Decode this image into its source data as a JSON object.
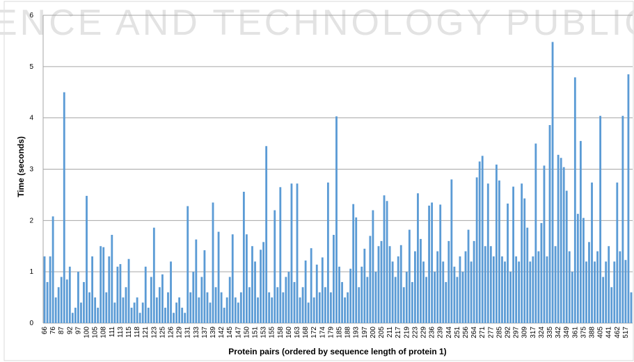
{
  "watermark": "ENCE AND TECHNOLOGY PUBLICATI",
  "chart_data": {
    "type": "bar",
    "y_label": "Time (seconds)",
    "x_label": "Protein pairs (ordered by sequence length of protein 1)",
    "color": "#5b9bd5",
    "grid": true,
    "ylim": [
      0,
      6
    ],
    "yticks": [
      0,
      1,
      2,
      3,
      4,
      5,
      6
    ],
    "categories": [
      "66",
      null,
      null,
      "76",
      null,
      null,
      "87",
      null,
      null,
      "92",
      null,
      null,
      "97",
      null,
      null,
      "100",
      null,
      null,
      "105",
      null,
      null,
      "108",
      null,
      null,
      "111",
      null,
      null,
      "113",
      null,
      null,
      "115",
      null,
      null,
      "118",
      null,
      null,
      "121",
      null,
      null,
      "123",
      null,
      null,
      "125",
      null,
      null,
      "126",
      null,
      null,
      "129",
      null,
      null,
      "131",
      null,
      null,
      "133",
      null,
      null,
      "137",
      null,
      null,
      "139",
      null,
      null,
      "142",
      null,
      null,
      "145",
      null,
      null,
      "147",
      null,
      null,
      "150",
      null,
      null,
      "151",
      null,
      null,
      "153",
      null,
      null,
      "155",
      null,
      null,
      "158",
      null,
      null,
      "160",
      null,
      null,
      "163",
      null,
      null,
      "168",
      null,
      null,
      "172",
      null,
      null,
      "174",
      null,
      null,
      "179",
      null,
      null,
      "185",
      null,
      null,
      "188",
      null,
      null,
      "193",
      null,
      null,
      "197",
      null,
      null,
      "200",
      null,
      null,
      "205",
      null,
      null,
      "211",
      null,
      null,
      "217",
      null,
      null,
      "219",
      null,
      null,
      "223",
      null,
      null,
      "229",
      null,
      null,
      "236",
      null,
      null,
      "239",
      null,
      null,
      "244",
      null,
      null,
      "251",
      null,
      null,
      "256",
      null,
      null,
      "264",
      null,
      null,
      "271",
      null,
      null,
      "277",
      null,
      null,
      "285",
      null,
      null,
      "292",
      null,
      null,
      "297",
      null,
      null,
      "309",
      null,
      null,
      "317",
      null,
      null,
      "324",
      null,
      null,
      "335",
      null,
      null,
      "342",
      null,
      null,
      "349",
      null,
      null,
      "361",
      null,
      null,
      "375",
      null,
      null,
      "388",
      null,
      null,
      "405",
      null,
      null,
      "441",
      null,
      null,
      "462",
      null,
      null,
      "517",
      null,
      null
    ],
    "values": [
      1.3,
      0.8,
      1.3,
      2.08,
      0.5,
      0.7,
      0.9,
      4.5,
      0.85,
      1.1,
      0.2,
      0.3,
      1.0,
      0.4,
      0.8,
      2.48,
      0.6,
      1.3,
      0.5,
      0.3,
      1.5,
      1.48,
      0.6,
      1.3,
      1.72,
      0.4,
      1.1,
      1.15,
      0.5,
      0.7,
      1.25,
      0.3,
      0.4,
      0.5,
      0.2,
      0.4,
      1.1,
      0.3,
      0.9,
      1.86,
      0.5,
      0.7,
      0.95,
      0.3,
      0.6,
      1.2,
      0.2,
      0.4,
      0.5,
      0.3,
      0.2,
      2.28,
      0.6,
      1.0,
      1.63,
      0.5,
      0.9,
      1.42,
      0.6,
      0.4,
      2.35,
      0.7,
      1.78,
      0.6,
      0.3,
      0.5,
      0.9,
      1.73,
      0.5,
      0.4,
      0.6,
      2.56,
      1.73,
      0.7,
      1.5,
      1.2,
      0.5,
      1.43,
      1.58,
      3.45,
      0.6,
      0.5,
      2.2,
      0.7,
      2.65,
      0.6,
      0.9,
      1.0,
      2.72,
      0.8,
      2.72,
      0.5,
      0.7,
      1.22,
      0.4,
      1.46,
      0.5,
      1.14,
      0.6,
      1.28,
      0.7,
      2.74,
      0.6,
      1.72,
      4.03,
      1.1,
      0.8,
      0.5,
      0.6,
      1.06,
      2.32,
      2.06,
      0.7,
      1.1,
      1.45,
      0.9,
      1.7,
      2.2,
      1.0,
      1.5,
      1.6,
      2.49,
      2.38,
      1.5,
      1.2,
      0.9,
      1.3,
      1.52,
      0.7,
      1.0,
      1.82,
      0.8,
      1.4,
      2.53,
      1.64,
      1.2,
      0.9,
      2.29,
      2.35,
      1.0,
      1.4,
      2.31,
      1.2,
      0.8,
      1.6,
      2.8,
      1.1,
      0.9,
      1.3,
      1.0,
      1.4,
      1.82,
      1.2,
      1.6,
      2.84,
      3.15,
      3.26,
      1.5,
      2.72,
      1.5,
      1.3,
      3.09,
      2.78,
      1.3,
      1.2,
      2.33,
      1.0,
      2.66,
      1.3,
      1.2,
      2.72,
      2.43,
      1.86,
      1.2,
      1.3,
      3.5,
      1.4,
      1.95,
      3.07,
      1.3,
      3.86,
      5.48,
      1.5,
      3.28,
      3.22,
      3.04,
      2.58,
      1.4,
      1.0,
      4.79,
      2.13,
      3.55,
      2.05,
      1.2,
      1.58,
      2.74,
      1.2,
      1.4,
      4.04,
      0.9,
      1.2,
      1.5,
      0.7,
      1.2,
      2.74,
      1.4,
      4.04,
      1.23,
      4.85,
      0.6
    ]
  }
}
